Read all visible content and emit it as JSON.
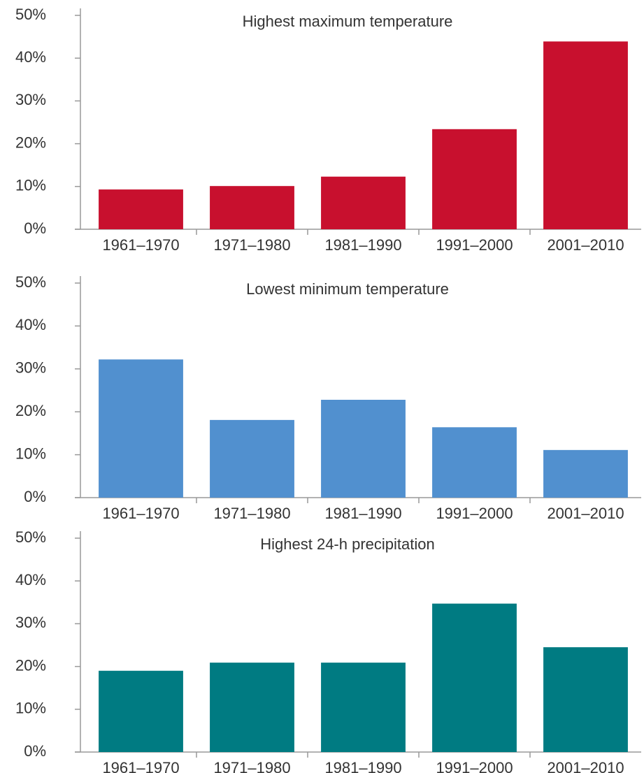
{
  "chart_data": [
    {
      "type": "bar",
      "title": "Highest maximum temperature",
      "categories": [
        "1961–1970",
        "1971–1980",
        "1981–1990",
        "1991–2000",
        "2001–2010"
      ],
      "values": [
        9.3,
        10.1,
        12.3,
        23.4,
        43.9
      ],
      "color": "#c8102e",
      "ylim": [
        0,
        50
      ],
      "yticks": [
        {
          "value": 0,
          "label": "0%"
        },
        {
          "value": 10,
          "label": "10%"
        },
        {
          "value": 20,
          "label": "20%"
        },
        {
          "value": 30,
          "label": "30%"
        },
        {
          "value": 40,
          "label": "40%"
        },
        {
          "value": 50,
          "label": "50%"
        }
      ]
    },
    {
      "type": "bar",
      "title": "Lowest minimum temperature",
      "categories": [
        "1961–1970",
        "1971–1980",
        "1981–1990",
        "1991–2000",
        "2001–2010"
      ],
      "values": [
        32.2,
        18.1,
        22.8,
        16.4,
        11.1
      ],
      "color": "#5190cf",
      "ylim": [
        0,
        50
      ],
      "yticks": [
        {
          "value": 0,
          "label": "0%"
        },
        {
          "value": 10,
          "label": "10%"
        },
        {
          "value": 20,
          "label": "20%"
        },
        {
          "value": 30,
          "label": "30%"
        },
        {
          "value": 40,
          "label": "40%"
        },
        {
          "value": 50,
          "label": "50%"
        }
      ]
    },
    {
      "type": "bar",
      "title": "Highest 24-h precipitation",
      "categories": [
        "1961–1970",
        "1971–1980",
        "1981–1990",
        "1991–2000",
        "2001–2010"
      ],
      "values": [
        19.0,
        20.9,
        20.9,
        34.7,
        24.5
      ],
      "color": "#007b82",
      "ylim": [
        0,
        50
      ],
      "yticks": [
        {
          "value": 0,
          "label": "0%"
        },
        {
          "value": 10,
          "label": "10%"
        },
        {
          "value": 20,
          "label": "20%"
        },
        {
          "value": 30,
          "label": "30%"
        },
        {
          "value": 40,
          "label": "40%"
        },
        {
          "value": 50,
          "label": "50%"
        }
      ]
    }
  ]
}
